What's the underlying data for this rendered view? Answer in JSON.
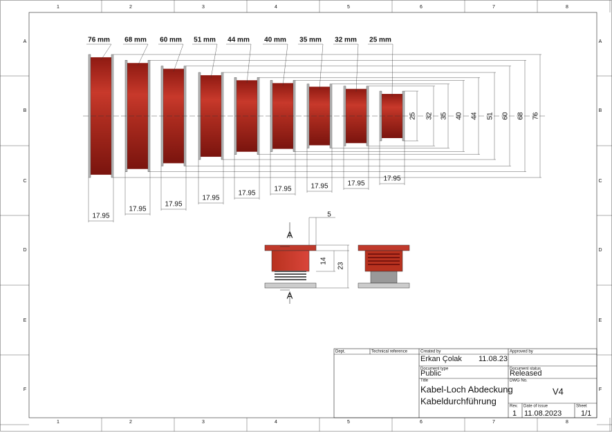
{
  "frame": {
    "columns": [
      "1",
      "2",
      "3",
      "4",
      "5",
      "6",
      "7",
      "8"
    ],
    "rows": [
      "A",
      "B",
      "C",
      "D",
      "E",
      "F"
    ]
  },
  "parts": [
    {
      "label": "76 mm",
      "diameter": "76",
      "width": "17.95"
    },
    {
      "label": "68 mm",
      "diameter": "68",
      "width": "17.95"
    },
    {
      "label": "60 mm",
      "diameter": "60",
      "width": "17.95"
    },
    {
      "label": "51 mm",
      "diameter": "51",
      "width": "17.95"
    },
    {
      "label": "44 mm",
      "diameter": "44",
      "width": "17.95"
    },
    {
      "label": "40 mm",
      "diameter": "40",
      "width": "17.95"
    },
    {
      "label": "35 mm",
      "diameter": "35",
      "width": "17.95"
    },
    {
      "label": "32 mm",
      "diameter": "32",
      "width": "17.95"
    },
    {
      "label": "25 mm",
      "diameter": "25",
      "width": "17.95"
    }
  ],
  "section": {
    "cut_top": "A",
    "cut_bottom": "A",
    "dims": [
      "5",
      "14",
      "23"
    ]
  },
  "title_block": {
    "dept": "Dept.",
    "technical_reference": "Technical reference",
    "created_by_label": "Created by",
    "created_by": "Erkan Çolak",
    "created_date": "11.08.23",
    "approved_by_label": "Approved by",
    "document_type_label": "Document type",
    "document_type": "Public",
    "document_status_label": "Document status",
    "document_status": "Released",
    "title_label": "Title",
    "title_line1": "Kabel-Loch Abdeckung",
    "title_line2": "Kabeldurchführung",
    "dwg_no_label": "DWG No.",
    "dwg_no": "V4",
    "rev_label": "Rev.",
    "rev": "1",
    "date_of_issue_label": "Date of issue",
    "date_of_issue": "11.08.2023",
    "sheet_label": "Sheet",
    "sheet": "1/1"
  }
}
